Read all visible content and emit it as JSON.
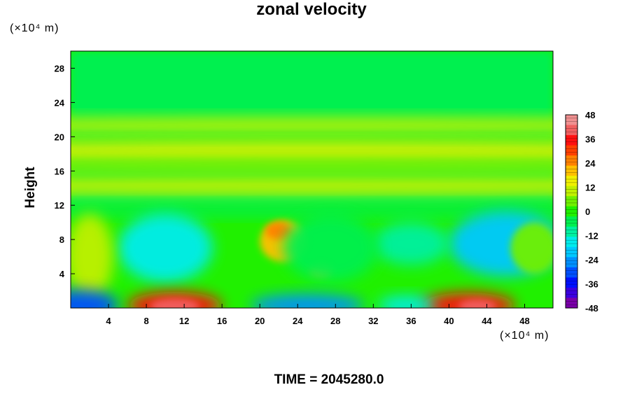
{
  "chart_data": {
    "type": "heatmap",
    "title": "zonal velocity",
    "ylabel": "Height",
    "xunit": "(×10⁴ m)",
    "yunit": "(×10⁴ m)",
    "footer": "TIME = 2045280.0",
    "xlim": [
      0,
      51
    ],
    "ylim": [
      0,
      30
    ],
    "x_ticks": [
      4,
      8,
      12,
      16,
      20,
      24,
      28,
      32,
      36,
      40,
      44,
      48
    ],
    "y_ticks": [
      4,
      8,
      12,
      16,
      20,
      24,
      28
    ],
    "colorbar": {
      "range": [
        -48,
        48
      ],
      "ticks": [
        48,
        36,
        24,
        12,
        0,
        -12,
        -24,
        -36,
        -48
      ],
      "colors": [
        "#7a00a8",
        "#3b00e0",
        "#0010ff",
        "#0050ff",
        "#0090ff",
        "#00c8ff",
        "#00ecec",
        "#00f0a0",
        "#00f050",
        "#20f000",
        "#70f000",
        "#c0f000",
        "#f0f000",
        "#ffc000",
        "#ff8000",
        "#ff4000",
        "#ff1010",
        "#f06060",
        "#f09090"
      ]
    },
    "features": [
      {
        "x": 0,
        "y": 0,
        "w": 51,
        "h": 30,
        "value": 0
      },
      {
        "x": 0,
        "y": 12.5,
        "w": 51,
        "h": 17.5,
        "value": -4
      },
      {
        "x": 25.5,
        "y": 21.3,
        "w": 60,
        "h": 1.0,
        "value": 12
      },
      {
        "x": 25.5,
        "y": 19.2,
        "w": 60,
        "h": 0.8,
        "value": 6
      },
      {
        "x": 25.5,
        "y": 18.0,
        "w": 60,
        "h": 1.2,
        "value": 14
      },
      {
        "x": 25.5,
        "y": 14.3,
        "w": 60,
        "h": 1.3,
        "value": 12
      },
      {
        "x": 25.5,
        "y": 16.6,
        "w": 60,
        "h": 1.0,
        "value": 6
      },
      {
        "x": 25.5,
        "y": 11.5,
        "w": 60,
        "h": 0.8,
        "value": -6
      },
      {
        "x": 10,
        "y": 7,
        "w": 5,
        "h": 4,
        "value": -14
      },
      {
        "x": 46,
        "y": 7.5,
        "w": 6,
        "h": 3.8,
        "value": -18
      },
      {
        "x": 36,
        "y": 7.5,
        "w": 4,
        "h": 2.5,
        "value": -8
      },
      {
        "x": 2,
        "y": 6,
        "w": 2.5,
        "h": 5,
        "value": 8
      },
      {
        "x": 49,
        "y": 7,
        "w": 2.5,
        "h": 3,
        "value": 6
      },
      {
        "x": 22.5,
        "y": 7.8,
        "w": 2.5,
        "h": 2.4,
        "value": 22
      },
      {
        "x": 22,
        "y": 9,
        "w": 1.4,
        "h": 1,
        "value": 24
      },
      {
        "x": 26.5,
        "y": 4.5,
        "w": 1.2,
        "h": 0.8,
        "value": 20
      },
      {
        "x": 27.5,
        "y": 7,
        "w": 5,
        "h": 4,
        "value": -6
      },
      {
        "x": 11,
        "y": 0.3,
        "w": 5,
        "h": 1.6,
        "value": 36
      },
      {
        "x": 11,
        "y": 0.2,
        "w": 2.6,
        "h": 0.9,
        "value": 40
      },
      {
        "x": 42,
        "y": 0.3,
        "w": 5,
        "h": 1.5,
        "value": 34
      },
      {
        "x": 43,
        "y": 0.2,
        "w": 2,
        "h": 0.8,
        "value": 38
      },
      {
        "x": 1,
        "y": 0.3,
        "w": 4,
        "h": 1.8,
        "value": -32
      },
      {
        "x": 25,
        "y": 0.3,
        "w": 6,
        "h": 1.3,
        "value": -26
      },
      {
        "x": 35.5,
        "y": 0.3,
        "w": 3,
        "h": 1.1,
        "value": -14
      }
    ]
  }
}
